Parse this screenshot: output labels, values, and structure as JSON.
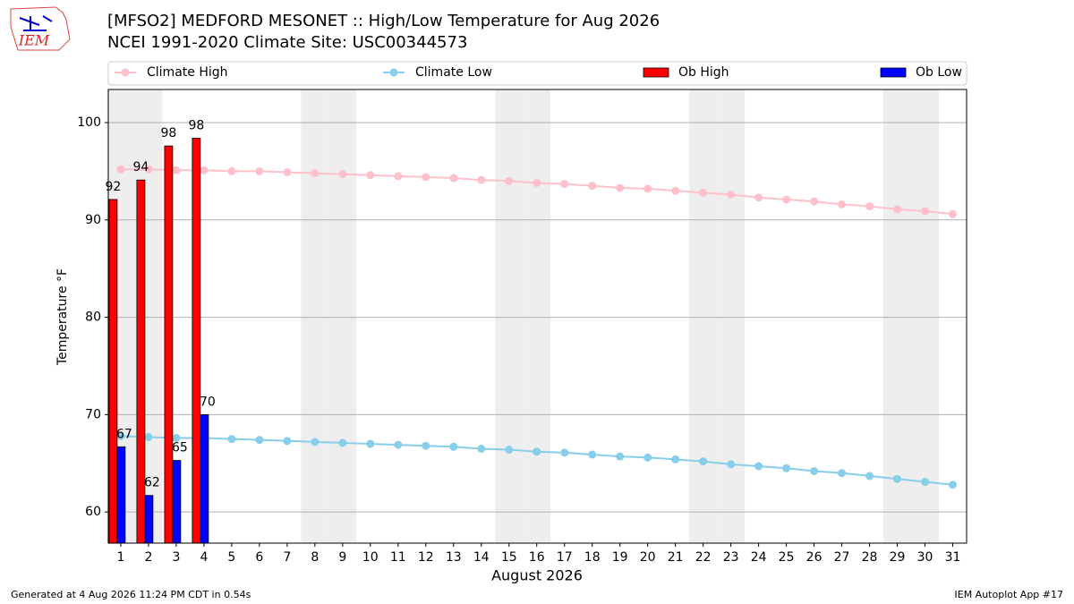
{
  "chart_data": {
    "type": "bar",
    "title": "[MFSO2] MEDFORD MESONET :: High/Low Temperature for Aug 2026",
    "subtitle": "NCEI 1991-2020 Climate Site: USC00344573",
    "logo": "IEM",
    "ylabel": "Temperature °F",
    "xlabel": "August 2026",
    "footer_left": "Generated at 4 Aug 2026 11:24 PM CDT in 0.54s",
    "footer_right": "IEM Autoplot App #17",
    "x": [
      1,
      2,
      3,
      4,
      5,
      6,
      7,
      8,
      9,
      10,
      11,
      12,
      13,
      14,
      15,
      16,
      17,
      18,
      19,
      20,
      21,
      22,
      23,
      24,
      25,
      26,
      27,
      28,
      29,
      30,
      31
    ],
    "xlim": [
      0.55,
      31.5
    ],
    "xticks": [
      1,
      2,
      3,
      4,
      5,
      6,
      7,
      8,
      9,
      10,
      11,
      12,
      13,
      14,
      15,
      16,
      17,
      18,
      19,
      20,
      21,
      22,
      23,
      24,
      25,
      26,
      27,
      28,
      29,
      30,
      31
    ],
    "ylim": [
      56.8,
      103.4
    ],
    "yticks": [
      60,
      70,
      80,
      90,
      100
    ],
    "grid": true,
    "shaded_days": [
      1,
      2,
      8,
      9,
      15,
      16,
      22,
      23,
      29,
      30
    ],
    "series": [
      {
        "name": "Climate High",
        "kind": "line",
        "color": "#ffc0cb",
        "values": [
          95.2,
          95.2,
          95.1,
          95.1,
          95.0,
          95.0,
          94.9,
          94.8,
          94.7,
          94.6,
          94.5,
          94.4,
          94.3,
          94.1,
          94.0,
          93.8,
          93.7,
          93.5,
          93.3,
          93.2,
          93.0,
          92.8,
          92.6,
          92.3,
          92.1,
          91.9,
          91.6,
          91.4,
          91.1,
          90.9,
          90.6
        ]
      },
      {
        "name": "Climate Low",
        "kind": "line",
        "color": "#87ceeb",
        "values": [
          67.8,
          67.7,
          67.6,
          67.6,
          67.5,
          67.4,
          67.3,
          67.2,
          67.1,
          67.0,
          66.9,
          66.8,
          66.7,
          66.5,
          66.4,
          66.2,
          66.1,
          65.9,
          65.7,
          65.6,
          65.4,
          65.2,
          64.9,
          64.7,
          64.5,
          64.2,
          64.0,
          63.7,
          63.4,
          63.1,
          62.8
        ]
      },
      {
        "name": "Ob High",
        "kind": "bar",
        "color": "#ff0000",
        "values": [
          92.1,
          94.1,
          97.6,
          98.4,
          null,
          null,
          null,
          null,
          null,
          null,
          null,
          null,
          null,
          null,
          null,
          null,
          null,
          null,
          null,
          null,
          null,
          null,
          null,
          null,
          null,
          null,
          null,
          null,
          null,
          null,
          null
        ],
        "value_labels": [
          "92",
          "94",
          "98",
          "98",
          null,
          null,
          null,
          null,
          null,
          null,
          null,
          null,
          null,
          null,
          null,
          null,
          null,
          null,
          null,
          null,
          null,
          null,
          null,
          null,
          null,
          null,
          null,
          null,
          null,
          null,
          null
        ]
      },
      {
        "name": "Ob Low",
        "kind": "bar",
        "color": "#0000ff",
        "values": [
          66.7,
          61.7,
          65.3,
          70.0,
          null,
          null,
          null,
          null,
          null,
          null,
          null,
          null,
          null,
          null,
          null,
          null,
          null,
          null,
          null,
          null,
          null,
          null,
          null,
          null,
          null,
          null,
          null,
          null,
          null,
          null,
          null
        ],
        "value_labels": [
          "67",
          "62",
          "65",
          "70",
          null,
          null,
          null,
          null,
          null,
          null,
          null,
          null,
          null,
          null,
          null,
          null,
          null,
          null,
          null,
          null,
          null,
          null,
          null,
          null,
          null,
          null,
          null,
          null,
          null,
          null,
          null
        ]
      }
    ]
  }
}
